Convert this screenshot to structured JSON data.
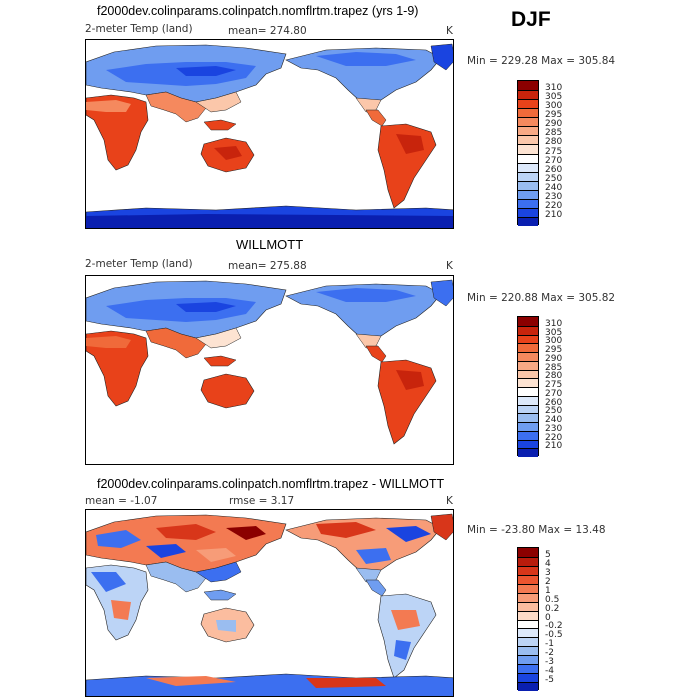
{
  "season": "DJF",
  "panels": [
    {
      "title": "f2000dev.colinparams.colinpatch.nomflrtm.trapez (yrs 1-9)",
      "left_label": "2-meter Temp (land)",
      "center_label": "mean= 274.80",
      "units": "K",
      "minmax": "Min = 229.28 Max = 305.84",
      "colorbar": {
        "labels": [
          "310",
          "305",
          "300",
          "295",
          "290",
          "285",
          "280",
          "275",
          "270",
          "260",
          "250",
          "240",
          "230",
          "220",
          "210"
        ],
        "colors": [
          "#8b0000",
          "#c8240c",
          "#e8421a",
          "#f06a3a",
          "#f5895e",
          "#f8a985",
          "#fbc7aa",
          "#fde3d2",
          "#ffffff",
          "#dde9fb",
          "#bcd4f6",
          "#9abdf0",
          "#6f9df0",
          "#3c6ff0",
          "#1a44e0",
          "#0a1fb0"
        ]
      }
    },
    {
      "title": "WILLMOTT",
      "left_label": "2-meter Temp (land)",
      "center_label": "mean= 275.88",
      "units": "K",
      "minmax": "Min = 220.88 Max = 305.82",
      "colorbar": {
        "labels": [
          "310",
          "305",
          "300",
          "295",
          "290",
          "285",
          "280",
          "275",
          "270",
          "260",
          "250",
          "240",
          "230",
          "220",
          "210"
        ],
        "colors": [
          "#8b0000",
          "#c8240c",
          "#e8421a",
          "#f06a3a",
          "#f5895e",
          "#f8a985",
          "#fbc7aa",
          "#fde3d2",
          "#ffffff",
          "#dde9fb",
          "#bcd4f6",
          "#9abdf0",
          "#6f9df0",
          "#3c6ff0",
          "#1a44e0",
          "#0a1fb0"
        ]
      }
    },
    {
      "title": "f2000dev.colinparams.colinpatch.nomflrtm.trapez - WILLMOTT",
      "left_label": "mean =  -1.07",
      "center_label": "rmse =   3.17",
      "units": "K",
      "minmax": "Min = -23.80 Max =  13.48",
      "colorbar": {
        "labels": [
          "5",
          "4",
          "3",
          "2",
          "1",
          "0.5",
          "0.2",
          "0",
          "-0.2",
          "-0.5",
          "-1",
          "-2",
          "-3",
          "-4",
          "-5"
        ],
        "colors": [
          "#8b0000",
          "#b81c0c",
          "#d8361a",
          "#ec5530",
          "#f37a52",
          "#f79c78",
          "#fbbd9f",
          "#fddbc7",
          "#ffffff",
          "#dde9fb",
          "#bcd4f6",
          "#9abdf0",
          "#6f9df0",
          "#3c6ff0",
          "#1a44e0",
          "#0a1fb0"
        ]
      }
    }
  ]
}
